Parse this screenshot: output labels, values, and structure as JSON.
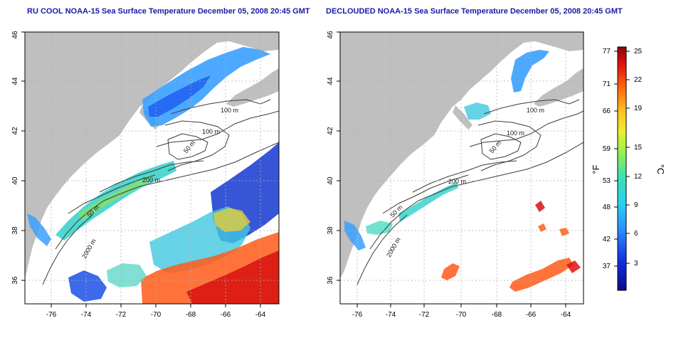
{
  "panels": [
    {
      "title": "RU COOL NOAA-15 Sea Surface Temperature December 05, 2008 20:45 GMT",
      "contour_labels": [
        "100 m",
        "100 m",
        "50 m",
        "200 m",
        "50 m",
        "2000 m"
      ]
    },
    {
      "title": "DECLOUDED NOAA-15 Sea Surface Temperature December 05, 2008 20:45 GMT",
      "contour_labels": [
        "100 m",
        "100 m",
        "50 m",
        "200 m",
        "50 m",
        "2000 m"
      ]
    }
  ],
  "axes": {
    "x_ticks": [
      "-76",
      "-74",
      "-72",
      "-70",
      "-68",
      "-66",
      "-64"
    ],
    "y_ticks": [
      "36",
      "38",
      "40",
      "42",
      "44",
      "46"
    ]
  },
  "colorbar": {
    "fahrenheit_label": "°F",
    "celsius_label": "°C",
    "fahrenheit_ticks": [
      "77",
      "71",
      "66",
      "59",
      "53",
      "48",
      "42",
      "37"
    ],
    "celsius_ticks": [
      "25",
      "22",
      "19",
      "15",
      "12",
      "9",
      "6",
      "3"
    ]
  },
  "colors": {
    "land": "#bfbfbf",
    "title": "#1a1aa6",
    "contour": "#3c3c3c",
    "grid": "#b0b0b0"
  }
}
